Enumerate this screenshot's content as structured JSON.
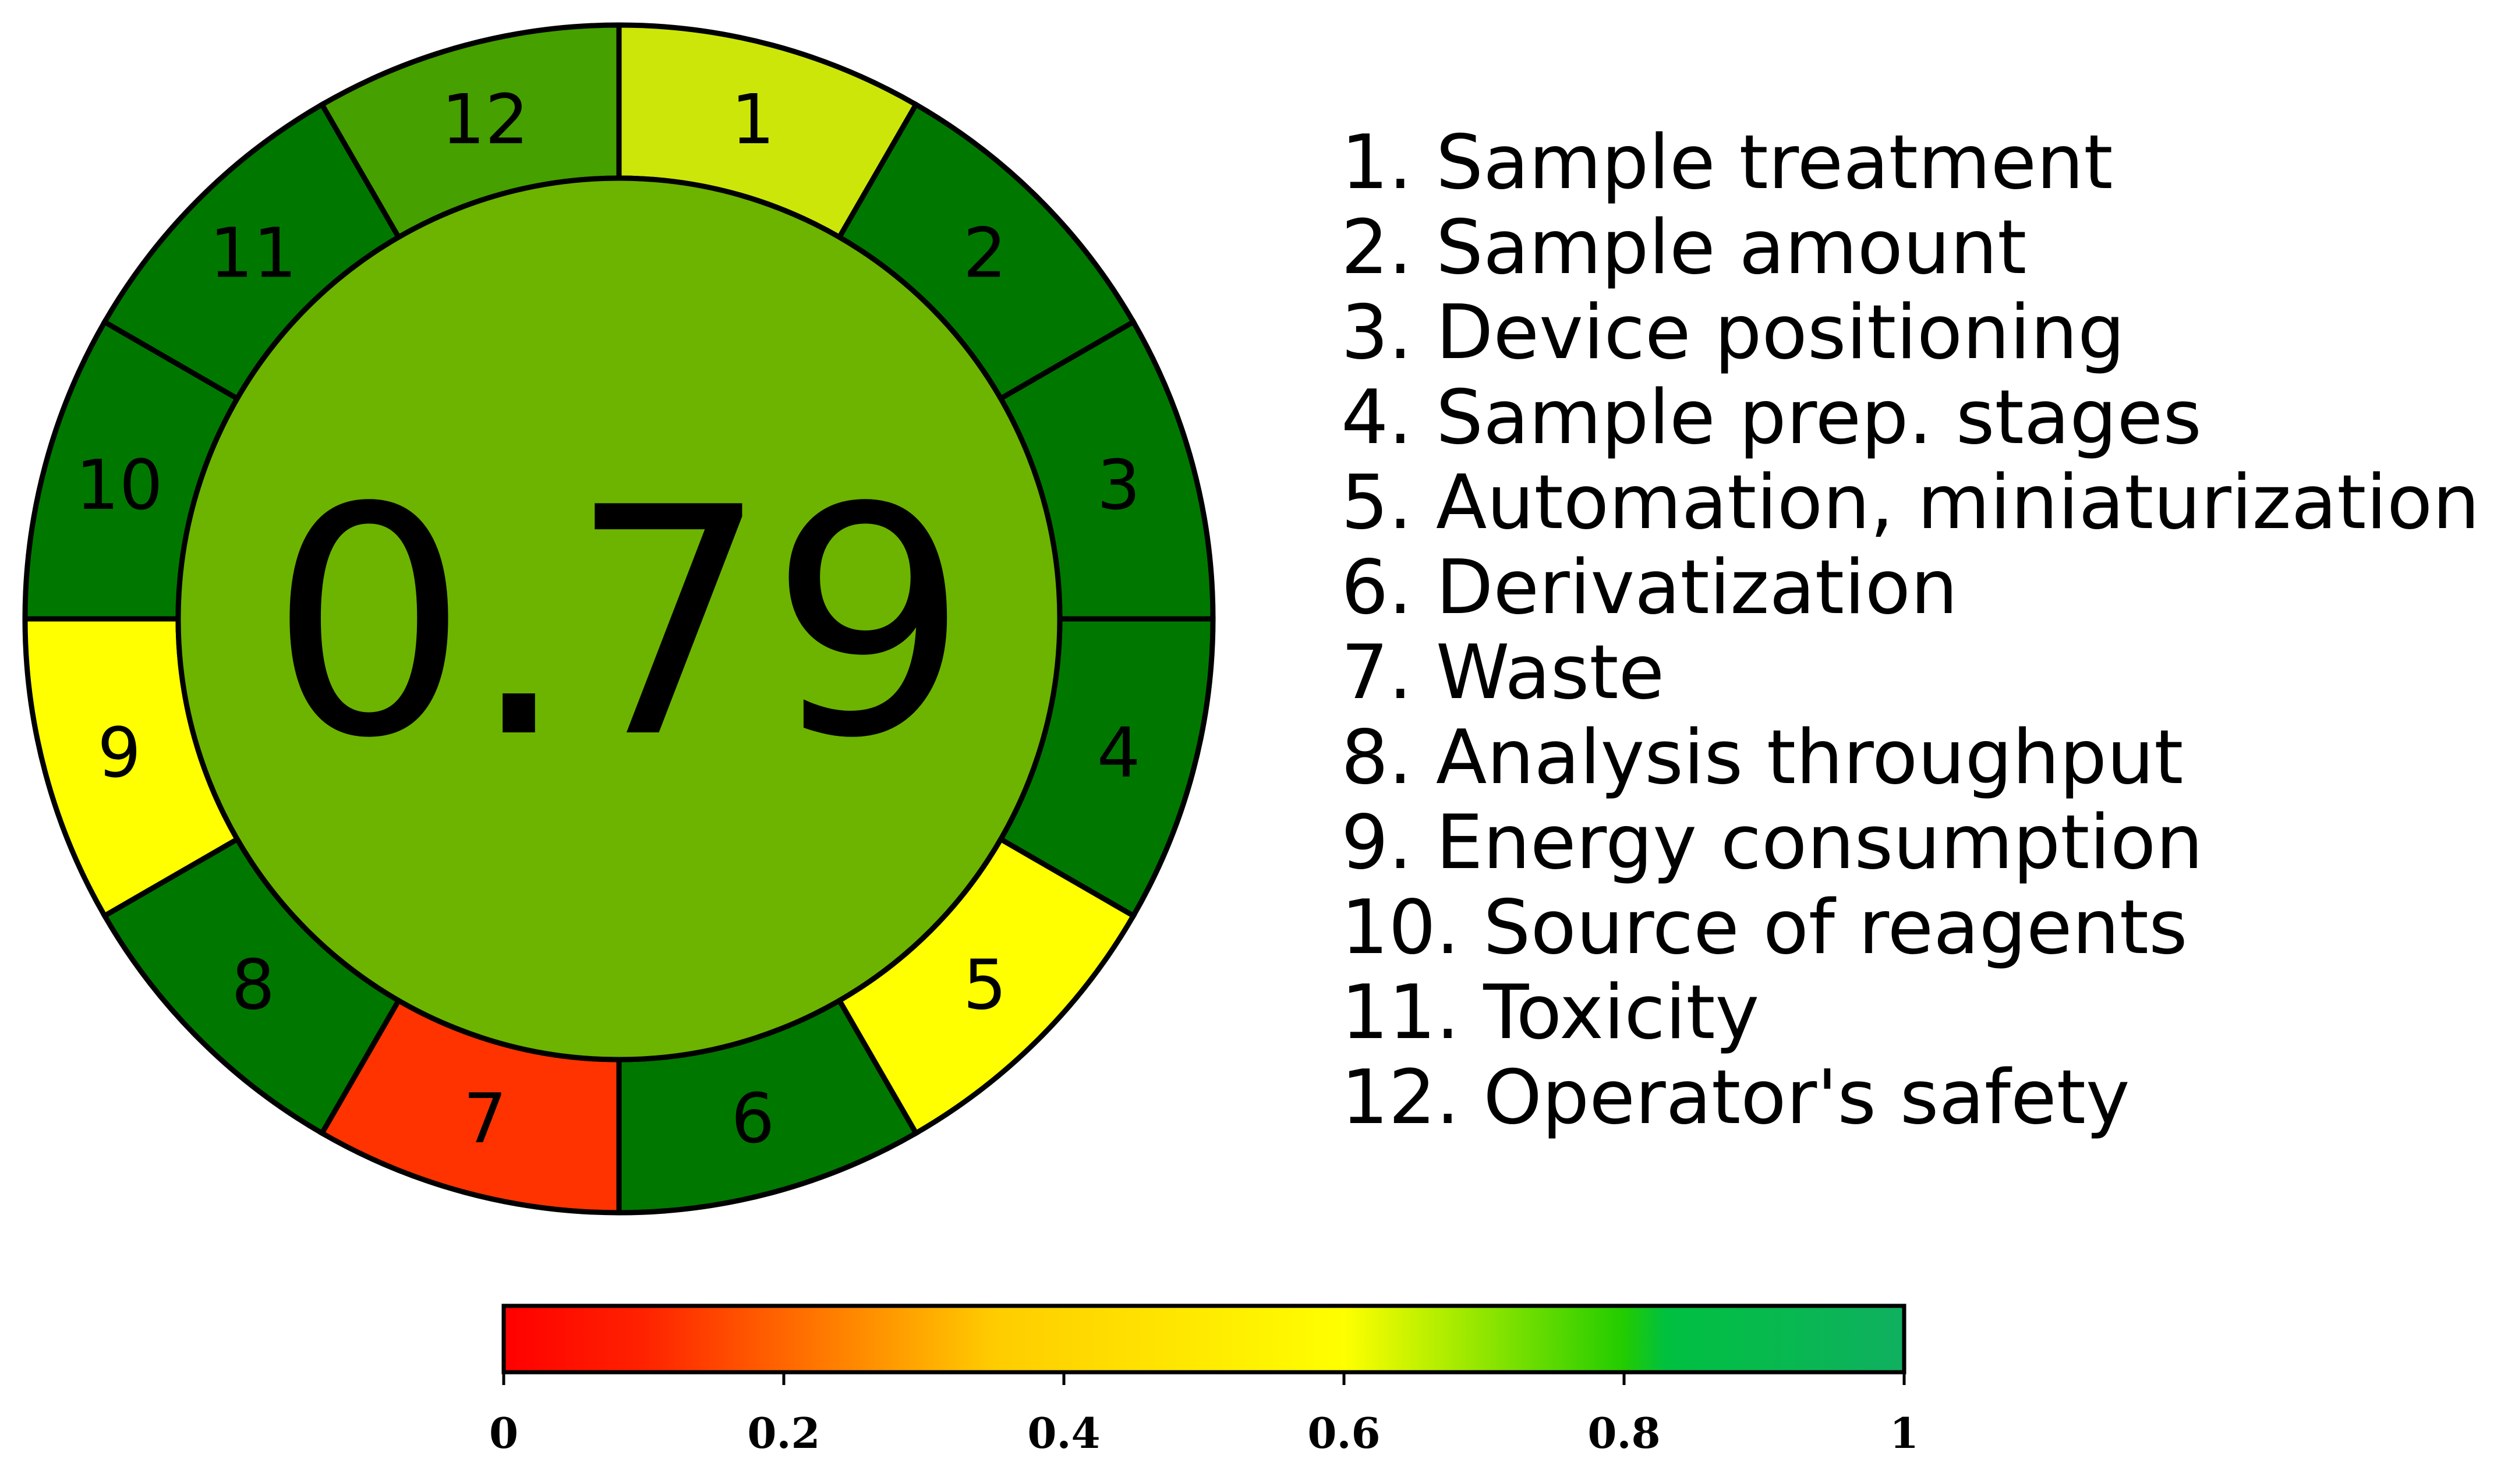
{
  "chart_data": {
    "type": "pie",
    "score": "0.79",
    "score_color": "#6cb400",
    "segments": [
      {
        "label": "1",
        "name": "Sample treatment",
        "color": "#cce60a"
      },
      {
        "label": "2",
        "name": "Sample amount",
        "color": "#007800"
      },
      {
        "label": "3",
        "name": "Device positioning",
        "color": "#007800"
      },
      {
        "label": "4",
        "name": "Sample prep. stages",
        "color": "#007800"
      },
      {
        "label": "5",
        "name": "Automation, miniaturization",
        "color": "#ffff00"
      },
      {
        "label": "6",
        "name": "Derivatization",
        "color": "#007800"
      },
      {
        "label": "7",
        "name": "Waste",
        "color": "#ff3300"
      },
      {
        "label": "8",
        "name": "Analysis throughput",
        "color": "#007800"
      },
      {
        "label": "9",
        "name": "Energy consumption",
        "color": "#ffff00"
      },
      {
        "label": "10",
        "name": "Source of reagents",
        "color": "#007800"
      },
      {
        "label": "11",
        "name": "Toxicity",
        "color": "#007800"
      },
      {
        "label": "12",
        "name": "Operator's safety",
        "color": "#46a000"
      }
    ],
    "legend": [
      "1. Sample treatment",
      "2. Sample amount",
      "3. Device positioning",
      "4. Sample prep. stages",
      "5. Automation, miniaturization",
      "6. Derivatization",
      "7. Waste",
      "8. Analysis throughput",
      "9. Energy consumption",
      "10. Source of reagents",
      "11. Toxicity",
      "12. Operator's safety"
    ],
    "colorbar": {
      "range": [
        0,
        1
      ],
      "ticks": [
        "0",
        "0.2",
        "0.4",
        "0.6",
        "0.8",
        "1"
      ],
      "tick_values": [
        0,
        0.2,
        0.4,
        0.6,
        0.8,
        1
      ],
      "stops": [
        {
          "value": 0,
          "color": "#ff0000"
        },
        {
          "value": 0.1,
          "color": "#ff2200"
        },
        {
          "value": 0.35,
          "color": "#ffcc00"
        },
        {
          "value": 0.6,
          "color": "#ffff00"
        },
        {
          "value": 0.8,
          "color": "#22cc00"
        },
        {
          "value": 0.83,
          "color": "#00c040"
        },
        {
          "value": 1,
          "color": "#10b060"
        }
      ]
    }
  }
}
